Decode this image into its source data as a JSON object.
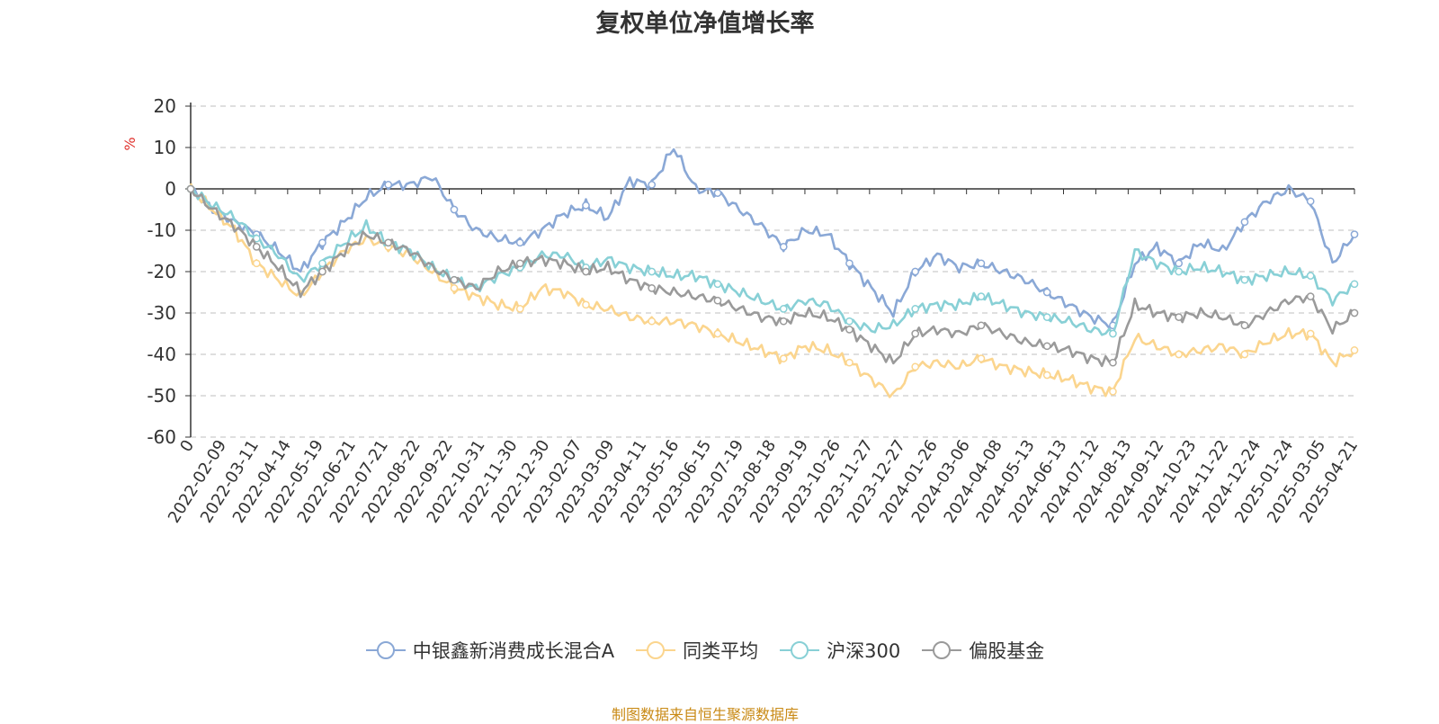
{
  "source_note": "制图数据来自恒生聚源数据库",
  "chart_data": {
    "type": "line",
    "title": "复权单位净值增长率",
    "ylabel": "%",
    "ylim": [
      -60,
      20
    ],
    "yticks": [
      20,
      10,
      0,
      -10,
      -20,
      -30,
      -40,
      -50,
      -60
    ],
    "grid": true,
    "legend_position": "bottom-center",
    "x_tick_labels": [
      "0",
      "2022-02-09",
      "2022-03-11",
      "2022-04-14",
      "2022-05-19",
      "2022-06-21",
      "2022-07-21",
      "2022-08-22",
      "2022-09-22",
      "2022-10-31",
      "2022-11-30",
      "2022-12-30",
      "2023-02-07",
      "2023-03-09",
      "2023-04-11",
      "2023-05-16",
      "2023-06-15",
      "2023-07-19",
      "2023-08-18",
      "2023-09-19",
      "2023-10-26",
      "2023-11-27",
      "2023-12-27",
      "2024-01-26",
      "2024-03-06",
      "2024-04-08",
      "2024-05-13",
      "2024-06-13",
      "2024-07-12",
      "2024-08-13",
      "2024-09-12",
      "2024-10-23",
      "2024-11-22",
      "2024-12-24",
      "2025-01-24",
      "2025-03-05",
      "2025-04-21"
    ],
    "series": [
      {
        "name": "中银鑫新消费成长混合A",
        "color": "#8aa8d6",
        "values": [
          0,
          -5,
          -8,
          -11,
          -15,
          -20,
          -13,
          -8,
          -2,
          1,
          1,
          3,
          -5,
          -10,
          -12,
          -13,
          -10,
          -6,
          -4,
          -7,
          2,
          1,
          10,
          0,
          -1,
          -5,
          -9,
          -14,
          -10,
          -11,
          -18,
          -24,
          -30,
          -20,
          -16,
          -19,
          -18,
          -20,
          -22,
          -25,
          -28,
          -31,
          -33,
          -18,
          -14,
          -18,
          -13,
          -15,
          -8,
          -3,
          0,
          -3,
          -18,
          -11
        ]
      },
      {
        "name": "同类平均",
        "color": "#fbd58e",
        "values": [
          0,
          -5,
          -10,
          -18,
          -22,
          -26,
          -20,
          -15,
          -12,
          -14,
          -16,
          -20,
          -24,
          -26,
          -28,
          -29,
          -24,
          -25,
          -28,
          -29,
          -31,
          -32,
          -32,
          -33,
          -35,
          -37,
          -39,
          -41,
          -38,
          -39,
          -42,
          -46,
          -50,
          -43,
          -42,
          -43,
          -41,
          -43,
          -44,
          -45,
          -46,
          -48,
          -49,
          -36,
          -38,
          -40,
          -39,
          -38,
          -40,
          -37,
          -35,
          -35,
          -42,
          -39
        ]
      },
      {
        "name": "沪深300",
        "color": "#88d0d6",
        "values": [
          0,
          -4,
          -7,
          -12,
          -16,
          -22,
          -18,
          -13,
          -9,
          -13,
          -15,
          -19,
          -22,
          -24,
          -21,
          -19,
          -16,
          -16,
          -19,
          -17,
          -19,
          -20,
          -21,
          -21,
          -23,
          -25,
          -27,
          -29,
          -27,
          -28,
          -32,
          -34,
          -33,
          -29,
          -28,
          -28,
          -26,
          -28,
          -30,
          -31,
          -32,
          -34,
          -35,
          -15,
          -18,
          -20,
          -19,
          -20,
          -22,
          -21,
          -20,
          -21,
          -27,
          -23
        ]
      },
      {
        "name": "偏股基金",
        "color": "#9a9a9a",
        "values": [
          0,
          -5,
          -9,
          -14,
          -19,
          -25,
          -20,
          -15,
          -11,
          -13,
          -15,
          -19,
          -22,
          -24,
          -20,
          -18,
          -17,
          -18,
          -20,
          -19,
          -22,
          -24,
          -25,
          -26,
          -27,
          -29,
          -31,
          -32,
          -30,
          -31,
          -34,
          -38,
          -42,
          -35,
          -34,
          -35,
          -33,
          -35,
          -37,
          -38,
          -39,
          -41,
          -42,
          -28,
          -30,
          -31,
          -30,
          -31,
          -33,
          -30,
          -27,
          -26,
          -34,
          -30
        ]
      }
    ]
  }
}
